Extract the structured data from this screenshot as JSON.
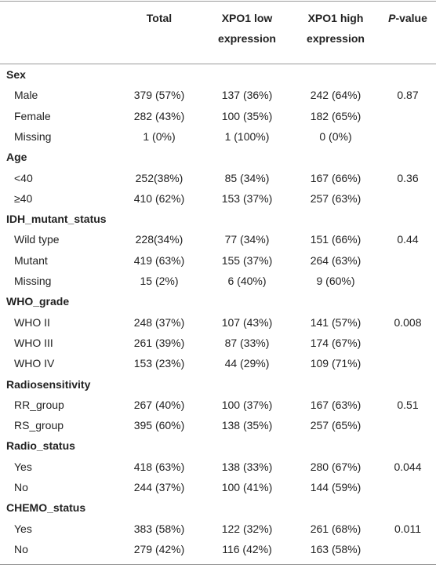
{
  "header": {
    "columns": [
      "Total",
      "XPO1 low expression",
      "XPO1 high expression"
    ],
    "p_value": {
      "italic": "P",
      "text": "-value"
    }
  },
  "groups": [
    {
      "name": "Sex",
      "rows": [
        {
          "label": "Male",
          "total": "379 (57%)",
          "low": "137 (36%)",
          "high": "242 (64%)",
          "p": "0.87"
        },
        {
          "label": "Female",
          "total": "282 (43%)",
          "low": "100 (35%)",
          "high": "182 (65%)",
          "p": null
        },
        {
          "label": "Missing",
          "total": "1 (0%)",
          "low": "1 (100%)",
          "high": "0 (0%)",
          "p": null
        }
      ]
    },
    {
      "name": "Age",
      "rows": [
        {
          "label": "<40",
          "total": "252(38%)",
          "low": "85 (34%)",
          "high": "167 (66%)",
          "p": "0.36"
        },
        {
          "label": "≥40",
          "total": "410 (62%)",
          "low": "153 (37%)",
          "high": "257 (63%)",
          "p": null
        }
      ]
    },
    {
      "name": "IDH_mutant_status",
      "rows": [
        {
          "label": "Wild type",
          "total": "228(34%)",
          "low": "77 (34%)",
          "high": "151 (66%)",
          "p": "0.44"
        },
        {
          "label": "Mutant",
          "total": "419 (63%)",
          "low": "155 (37%)",
          "high": "264 (63%)",
          "p": null
        },
        {
          "label": "Missing",
          "total": "15 (2%)",
          "low": "6 (40%)",
          "high": "9 (60%)",
          "p": null
        }
      ]
    },
    {
      "name": "WHO_grade",
      "rows": [
        {
          "label": "WHO II",
          "total": "248 (37%)",
          "low": "107 (43%)",
          "high": "141 (57%)",
          "p": "0.008"
        },
        {
          "label": "WHO III",
          "total": "261 (39%)",
          "low": "87 (33%)",
          "high": "174 (67%)",
          "p": null
        },
        {
          "label": "WHO IV",
          "total": "153 (23%)",
          "low": "44 (29%)",
          "high": "109 (71%)",
          "p": null
        }
      ]
    },
    {
      "name": "Radiosensitivity",
      "rows": [
        {
          "label": "RR_group",
          "total": "267 (40%)",
          "low": "100 (37%)",
          "high": "167 (63%)",
          "p": "0.51"
        },
        {
          "label": "RS_group",
          "total": "395 (60%)",
          "low": "138 (35%)",
          "high": "257 (65%)",
          "p": null
        }
      ]
    },
    {
      "name": "Radio_status",
      "rows": [
        {
          "label": "Yes",
          "total": "418 (63%)",
          "low": "138 (33%)",
          "high": "280 (67%)",
          "p": "0.044"
        },
        {
          "label": "No",
          "total": "244 (37%)",
          "low": "100 (41%)",
          "high": "144 (59%)",
          "p": null
        }
      ]
    },
    {
      "name": "CHEMO_status",
      "rows": [
        {
          "label": "Yes",
          "total": "383 (58%)",
          "low": "122 (32%)",
          "high": "261 (68%)",
          "p": "0.011"
        },
        {
          "label": "No",
          "total": "279 (42%)",
          "low": "116 (42%)",
          "high": "163 (58%)",
          "p": null
        }
      ]
    }
  ]
}
